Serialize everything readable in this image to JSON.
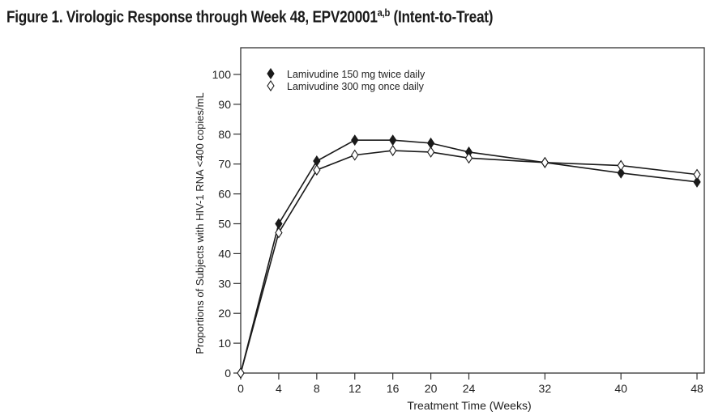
{
  "figure": {
    "title_main": "Figure 1. Virologic Response through Week 48, EPV20001",
    "title_sup": "a,b",
    "title_suffix": " (Intent-to-Treat)"
  },
  "chart_data": {
    "type": "line",
    "title": "Figure 1. Virologic Response through Week 48, EPV20001a,b (Intent-to-Treat)",
    "xlabel": "Treatment Time (Weeks)",
    "ylabel": "Proportions of Subjects with HIV-1 RNA <400 copies/mL",
    "xlim": [
      0,
      48
    ],
    "ylim": [
      0,
      100
    ],
    "xticks": [
      0,
      4,
      8,
      12,
      16,
      20,
      24,
      32,
      40,
      48
    ],
    "yticks": [
      0,
      10,
      20,
      30,
      40,
      50,
      60,
      70,
      80,
      90,
      100
    ],
    "grid": false,
    "legend_position": "top-left",
    "x": [
      0,
      4,
      8,
      12,
      16,
      20,
      24,
      32,
      40,
      48
    ],
    "series": [
      {
        "name": "Lamivudine 150 mg twice daily",
        "marker": "filled-diamond",
        "color": "#1a1a1a",
        "values": [
          0,
          50,
          71,
          78,
          78,
          77,
          74,
          70.5,
          67,
          64
        ]
      },
      {
        "name": "Lamivudine 300 mg once daily",
        "marker": "open-diamond",
        "color": "#1a1a1a",
        "values": [
          0,
          47,
          68,
          73,
          74.5,
          74,
          72,
          70.5,
          69.5,
          66.5
        ]
      }
    ]
  }
}
